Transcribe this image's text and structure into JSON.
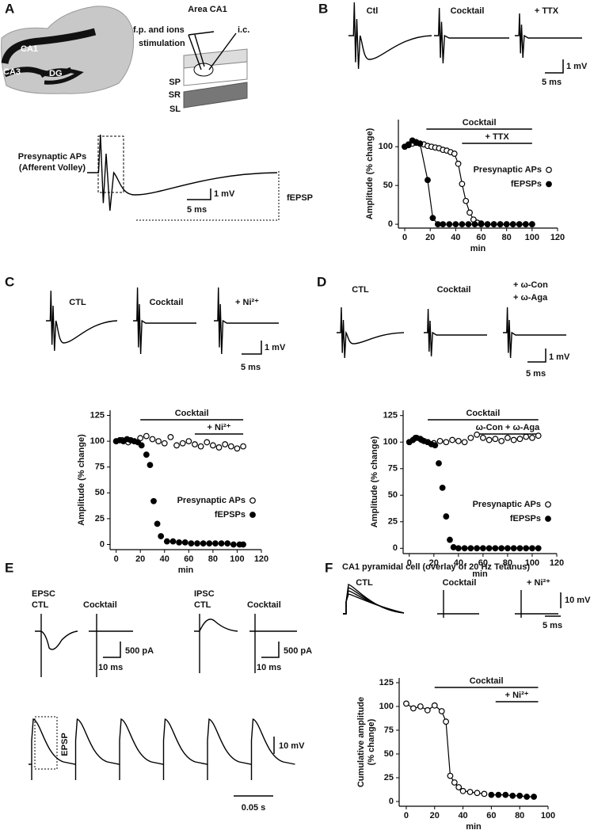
{
  "chart_data": [
    {
      "type": "scatter",
      "ylabel": "Amplitude (% change)",
      "xlabel": "min",
      "xlim": [
        -5,
        120
      ],
      "xticks": [
        0,
        20,
        40,
        60,
        80,
        100,
        120
      ],
      "ylim": [
        -5,
        135
      ],
      "yticks": [
        0,
        50,
        100
      ],
      "line": true,
      "legend": "right",
      "annotations": [
        {
          "text": "Cocktail",
          "x_range": [
            17,
            100
          ]
        },
        {
          "text": "+ TTX",
          "x_range": [
            45,
            100
          ]
        }
      ],
      "series": [
        {
          "name": "Presynaptic APs",
          "marker": "open",
          "color": "#000000",
          "x": [
            0,
            3,
            6,
            9,
            12,
            15,
            18,
            21,
            24,
            27,
            30,
            33,
            36,
            39,
            42,
            45,
            48,
            51,
            54,
            57,
            60,
            65,
            70,
            75,
            80,
            85,
            90,
            95,
            100
          ],
          "values": [
            100,
            102,
            104,
            105,
            104,
            103,
            101,
            100,
            99,
            98,
            96,
            95,
            93,
            91,
            78,
            52,
            30,
            15,
            6,
            2,
            1,
            0,
            0,
            0,
            0,
            0,
            0,
            0,
            0
          ]
        },
        {
          "name": "fEPSPs",
          "marker": "filled",
          "color": "#000000",
          "x": [
            0,
            3,
            6,
            9,
            12,
            18,
            22,
            26,
            30,
            35,
            40,
            45,
            50,
            55,
            60,
            65,
            70,
            75,
            80,
            85,
            90,
            95,
            100
          ],
          "values": [
            100,
            103,
            108,
            106,
            104,
            57,
            8,
            0,
            0,
            0,
            0,
            0,
            0,
            0,
            0,
            0,
            0,
            0,
            0,
            0,
            0,
            0,
            0
          ]
        }
      ]
    },
    {
      "type": "scatter",
      "ylabel": "Amplitude (% change)",
      "xlabel": "min",
      "xlim": [
        -5,
        120
      ],
      "xticks": [
        0,
        20,
        40,
        60,
        80,
        100,
        120
      ],
      "ylim": [
        -5,
        130
      ],
      "yticks": [
        0,
        25,
        50,
        75,
        100,
        125
      ],
      "line": false,
      "legend": "lower right",
      "annotations": [
        {
          "text": "Cocktail",
          "x_range": [
            20,
            105
          ]
        },
        {
          "text": "+ Ni²⁺",
          "x_range": [
            65,
            105
          ]
        }
      ],
      "series": [
        {
          "name": "Presynaptic APs",
          "marker": "open",
          "color": "#000000",
          "x": [
            0,
            5,
            10,
            15,
            20,
            25,
            30,
            35,
            40,
            45,
            50,
            55,
            60,
            65,
            70,
            75,
            80,
            85,
            90,
            95,
            100,
            105
          ],
          "values": [
            100,
            101,
            99,
            100,
            103,
            105,
            102,
            100,
            98,
            104,
            96,
            98,
            100,
            97,
            95,
            99,
            96,
            94,
            97,
            95,
            93,
            95
          ]
        },
        {
          "name": "fEPSPs",
          "marker": "filled",
          "color": "#000000",
          "x": [
            0,
            3,
            6,
            9,
            12,
            15,
            18,
            21,
            25,
            28,
            31,
            34,
            37,
            42,
            47,
            52,
            57,
            62,
            67,
            72,
            77,
            82,
            87,
            92,
            97,
            102,
            105
          ],
          "values": [
            100,
            101,
            100,
            102,
            101,
            100,
            99,
            96,
            87,
            77,
            42,
            20,
            8,
            3,
            3,
            2,
            2,
            1,
            1,
            1,
            1,
            1,
            1,
            1,
            0,
            0,
            0
          ]
        }
      ]
    },
    {
      "type": "scatter",
      "ylabel": "Amplitude (% change)",
      "xlabel": "min",
      "xlim": [
        -5,
        120
      ],
      "xticks": [
        0,
        20,
        40,
        60,
        80,
        100,
        120
      ],
      "ylim": [
        -5,
        130
      ],
      "yticks": [
        0,
        25,
        50,
        75,
        100,
        125
      ],
      "line": false,
      "legend": "lower right",
      "annotations": [
        {
          "text": "Cocktail",
          "x_range": [
            15,
            105
          ]
        },
        {
          "text": "ω-Con + ω-Aga",
          "x_range": [
            55,
            105
          ]
        }
      ],
      "series": [
        {
          "name": "Presynaptic APs",
          "marker": "open",
          "color": "#000000",
          "x": [
            0,
            5,
            10,
            15,
            20,
            25,
            30,
            35,
            40,
            45,
            50,
            55,
            60,
            65,
            70,
            75,
            80,
            85,
            90,
            95,
            100,
            105
          ],
          "values": [
            100,
            104,
            102,
            100,
            99,
            101,
            100,
            102,
            101,
            100,
            104,
            107,
            104,
            102,
            103,
            101,
            104,
            102,
            103,
            105,
            104,
            106
          ]
        },
        {
          "name": "fEPSPs",
          "marker": "filled",
          "color": "#000000",
          "x": [
            0,
            3,
            6,
            9,
            12,
            15,
            18,
            21,
            24,
            27,
            30,
            33,
            36,
            40,
            45,
            50,
            55,
            60,
            65,
            70,
            75,
            80,
            85,
            90,
            95,
            100,
            105
          ],
          "values": [
            100,
            102,
            104,
            103,
            101,
            100,
            98,
            97,
            80,
            57,
            30,
            8,
            1,
            0,
            0,
            0,
            0,
            0,
            0,
            0,
            0,
            0,
            0,
            0,
            0,
            0,
            0
          ]
        }
      ]
    },
    {
      "type": "scatter",
      "ylabel": [
        "Cumulative amplitude",
        "(% change)"
      ],
      "xlabel": "min",
      "xlim": [
        -5,
        100
      ],
      "xticks": [
        0,
        20,
        40,
        60,
        80,
        100
      ],
      "ylim": [
        -5,
        130
      ],
      "yticks": [
        0,
        25,
        50,
        75,
        100,
        125
      ],
      "line": true,
      "legend": "none",
      "annotations": [
        {
          "text": "Cocktail",
          "x_range": [
            20,
            93
          ]
        },
        {
          "text": "+ Ni²⁺",
          "x_range": [
            63,
            93
          ]
        }
      ],
      "series": [
        {
          "marker": "open",
          "color": "#000000",
          "x": [
            0,
            5,
            10,
            15,
            20,
            25,
            28,
            31,
            34,
            37,
            40,
            45,
            50,
            55
          ],
          "values": [
            103,
            98,
            100,
            96,
            101,
            95,
            84,
            27,
            20,
            15,
            11,
            10,
            9,
            8
          ]
        },
        {
          "marker": "filled",
          "color": "#000000",
          "x": [
            60,
            65,
            70,
            75,
            80,
            85,
            90
          ],
          "values": [
            7,
            7,
            7,
            6,
            6,
            5,
            5
          ]
        }
      ]
    }
  ],
  "figure": {
    "panel_labels": [
      "A",
      "B",
      "C",
      "D",
      "E",
      "F"
    ],
    "panel_a": {
      "regions": [
        "CA1",
        "CA3",
        "DG"
      ],
      "area": "Area CA1",
      "electrodes": [
        "f.p. and ions",
        "stimulation",
        "i.c."
      ],
      "layers": [
        "SP",
        "SR",
        "SL"
      ],
      "trace_labels": [
        "Presynaptic APs",
        "(Afferent Volley)",
        "fEPSP"
      ],
      "scale": [
        "1 mV",
        "5 ms"
      ]
    },
    "panel_b": {
      "conditions": [
        "Ctl",
        "Cocktail",
        "+ TTX"
      ],
      "scale": [
        "1 mV",
        "5 ms"
      ]
    },
    "panel_c": {
      "conditions": [
        "CTL",
        "Cocktail",
        "+ Ni²⁺"
      ],
      "scale": [
        "1 mV",
        "5 ms"
      ]
    },
    "panel_d": {
      "conditions": [
        "CTL",
        "Cocktail",
        "+ ω-Con",
        "+ ω-Aga"
      ],
      "scale": [
        "1 mV",
        "5 ms"
      ]
    },
    "panel_e": {
      "epsc": [
        "EPSC",
        "CTL",
        "Cocktail"
      ],
      "ipsc": [
        "IPSC",
        "CTL",
        "Cocktail"
      ],
      "scale_epsc": [
        "500 pA",
        "10 ms"
      ],
      "scale_ipsc": [
        "500 pA",
        "10 ms"
      ],
      "train_label": "EPSP",
      "train_scale": [
        "10 mV",
        "0.05 s"
      ]
    },
    "panel_f": {
      "title": "CA1 pyramidal cell (overlay of 20 Hz Tetanus)",
      "conditions": [
        "CTL",
        "Cocktail",
        "+ Ni²⁺"
      ],
      "scale": [
        "10 mV",
        "5 ms"
      ]
    }
  }
}
